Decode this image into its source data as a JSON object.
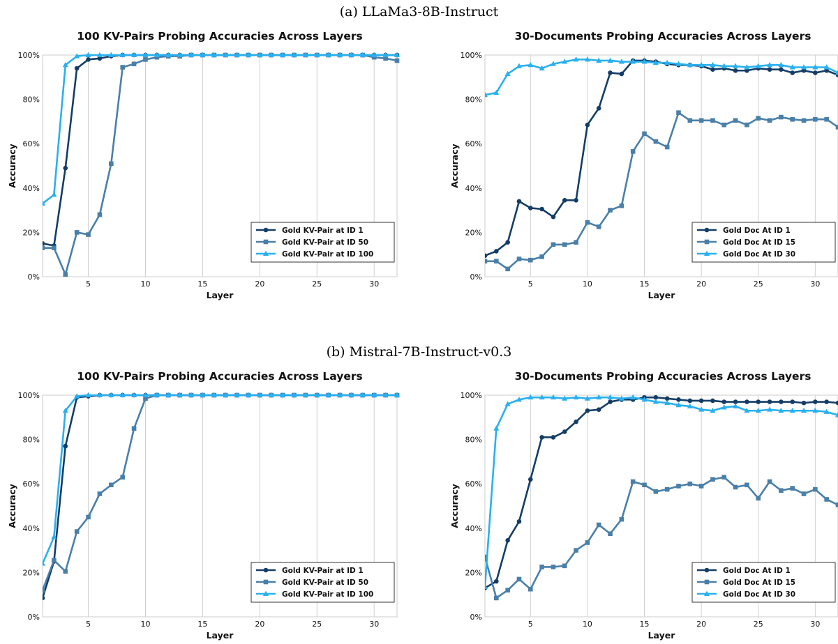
{
  "figure": {
    "group_titles": [
      "(a) LLaMa3-8B-Instruct",
      "(b) Mistral-7B-Instruct-v0.3"
    ]
  },
  "colors": {
    "dark": "#143d66",
    "mid": "#4a7fa8",
    "light": "#2ab0ef"
  },
  "chart_data": [
    {
      "type": "line",
      "title": "100 KV-Pairs Probing Accuracies Across Layers",
      "xlabel": "Layer",
      "ylabel": "Accuracy",
      "xlim": [
        1,
        32
      ],
      "ylim": [
        0,
        100
      ],
      "xticks": [
        5,
        10,
        15,
        20,
        25,
        30
      ],
      "yticks": [
        "0%",
        "20%",
        "40%",
        "60%",
        "80%",
        "100%"
      ],
      "grid": "vertical",
      "legend_position": "lower-right",
      "x": [
        1,
        2,
        3,
        4,
        5,
        6,
        7,
        8,
        9,
        10,
        11,
        12,
        13,
        14,
        15,
        16,
        17,
        18,
        19,
        20,
        21,
        22,
        23,
        24,
        25,
        26,
        27,
        28,
        29,
        30,
        31,
        32
      ],
      "series": [
        {
          "name": "Gold KV-Pair at ID 1",
          "color": "dark",
          "marker": "circle",
          "values": [
            15,
            14,
            49,
            94,
            98,
            98.5,
            99.5,
            100,
            100,
            100,
            100,
            100,
            100,
            100,
            100,
            100,
            100,
            100,
            100,
            100,
            100,
            100,
            100,
            100,
            100,
            100,
            100,
            100,
            100,
            100,
            100,
            100
          ]
        },
        {
          "name": "Gold KV-Pair at ID 50",
          "color": "mid",
          "marker": "square",
          "values": [
            13,
            13,
            1,
            20,
            19,
            28,
            51,
            94.5,
            96,
            98,
            99,
            99.5,
            99.5,
            100,
            100,
            100,
            100,
            100,
            100,
            100,
            100,
            100,
            100,
            100,
            100,
            100,
            100,
            100,
            100,
            99,
            98.5,
            97.5
          ]
        },
        {
          "name": "Gold KV-Pair at ID 100",
          "color": "light",
          "marker": "triangle",
          "values": [
            33,
            37,
            95.5,
            99.5,
            100,
            100,
            100,
            100,
            100,
            100,
            100,
            100,
            100,
            100,
            100,
            100,
            100,
            100,
            100,
            100,
            100,
            100,
            100,
            100,
            100,
            100,
            100,
            100,
            100,
            100,
            100,
            100
          ]
        }
      ]
    },
    {
      "type": "line",
      "title": "30-Documents Probing Accuracies Across Layers",
      "xlabel": "Layer",
      "ylabel": "Accuracy",
      "xlim": [
        1,
        32
      ],
      "ylim": [
        0,
        100
      ],
      "xticks": [
        5,
        10,
        15,
        20,
        25,
        30
      ],
      "yticks": [
        "0%",
        "20%",
        "40%",
        "60%",
        "80%",
        "100%"
      ],
      "grid": "vertical",
      "legend_position": "lower-right",
      "x": [
        1,
        2,
        3,
        4,
        5,
        6,
        7,
        8,
        9,
        10,
        11,
        12,
        13,
        14,
        15,
        16,
        17,
        18,
        19,
        20,
        21,
        22,
        23,
        24,
        25,
        26,
        27,
        28,
        29,
        30,
        31,
        32
      ],
      "series": [
        {
          "name": "Gold Doc At ID 1",
          "color": "dark",
          "marker": "circle",
          "values": [
            9.5,
            11.5,
            15.5,
            34,
            31,
            30.5,
            27,
            34.5,
            34.5,
            68.5,
            76,
            92,
            91.5,
            97.5,
            97.5,
            97,
            96,
            95.5,
            95.5,
            95,
            93.5,
            94,
            93,
            93,
            94,
            93.5,
            93.5,
            92,
            93,
            92,
            93,
            91
          ]
        },
        {
          "name": "Gold Doc At ID 15",
          "color": "mid",
          "marker": "square",
          "values": [
            7,
            7,
            3.5,
            8,
            7.5,
            9,
            14.5,
            14.5,
            15.5,
            24.5,
            22.5,
            30,
            32,
            56.5,
            64.5,
            61,
            58.5,
            74,
            70.5,
            70.5,
            70.5,
            68.5,
            70.5,
            68.5,
            71.5,
            70.5,
            72,
            71,
            70.5,
            71,
            71,
            67.5
          ]
        },
        {
          "name": "Gold Doc At ID 30",
          "color": "light",
          "marker": "triangle",
          "values": [
            82,
            83,
            91.5,
            95,
            95.5,
            94,
            96,
            97,
            98,
            98,
            97.5,
            97.5,
            97,
            97,
            97,
            96.5,
            96.5,
            96,
            95.5,
            95.5,
            95.5,
            95,
            95,
            94.5,
            95,
            95.5,
            95.5,
            94.5,
            94.5,
            94.5,
            94.5,
            92
          ]
        }
      ]
    },
    {
      "type": "line",
      "title": "100 KV-Pairs Probing Accuracies Across Layers",
      "xlabel": "Layer",
      "ylabel": "Accuracy",
      "xlim": [
        1,
        32
      ],
      "ylim": [
        0,
        100
      ],
      "xticks": [
        5,
        10,
        15,
        20,
        25,
        30
      ],
      "yticks": [
        "0%",
        "20%",
        "40%",
        "60%",
        "80%",
        "100%"
      ],
      "grid": "vertical",
      "legend_position": "lower-right",
      "x": [
        1,
        2,
        3,
        4,
        5,
        6,
        7,
        8,
        9,
        10,
        11,
        12,
        13,
        14,
        15,
        16,
        17,
        18,
        19,
        20,
        21,
        22,
        23,
        24,
        25,
        26,
        27,
        28,
        29,
        30,
        31,
        32
      ],
      "series": [
        {
          "name": "Gold KV-Pair at ID 1",
          "color": "dark",
          "marker": "circle",
          "values": [
            8.5,
            25,
            77,
            99,
            99.5,
            100,
            100,
            100,
            100,
            100,
            100,
            100,
            100,
            100,
            100,
            100,
            100,
            100,
            100,
            100,
            100,
            100,
            100,
            100,
            100,
            100,
            100,
            100,
            100,
            100,
            100,
            100
          ]
        },
        {
          "name": "Gold KV-Pair at ID 50",
          "color": "mid",
          "marker": "square",
          "values": [
            12,
            25.5,
            20.5,
            38.5,
            45,
            55.5,
            59.5,
            63,
            85,
            98.5,
            100,
            100,
            100,
            100,
            100,
            100,
            100,
            100,
            100,
            100,
            100,
            100,
            100,
            100,
            100,
            100,
            100,
            100,
            100,
            100,
            100,
            100
          ]
        },
        {
          "name": "Gold KV-Pair at ID 100",
          "color": "light",
          "marker": "triangle",
          "values": [
            24,
            36,
            93,
            99.5,
            100,
            100,
            100,
            100,
            100,
            100,
            100,
            100,
            100,
            100,
            100,
            100,
            100,
            100,
            100,
            100,
            100,
            100,
            100,
            100,
            100,
            100,
            100,
            100,
            100,
            100,
            100,
            100
          ]
        }
      ]
    },
    {
      "type": "line",
      "title": "30-Documents Probing Accuracies Across Layers",
      "xlabel": "Layer",
      "ylabel": "Accuracy",
      "xlim": [
        1,
        32
      ],
      "ylim": [
        0,
        100
      ],
      "xticks": [
        5,
        10,
        15,
        20,
        25,
        30
      ],
      "yticks": [
        "0%",
        "20%",
        "40%",
        "60%",
        "80%",
        "100%"
      ],
      "grid": "vertical",
      "legend_position": "lower-right",
      "x": [
        1,
        2,
        3,
        4,
        5,
        6,
        7,
        8,
        9,
        10,
        11,
        12,
        13,
        14,
        15,
        16,
        17,
        18,
        19,
        20,
        21,
        22,
        23,
        24,
        25,
        26,
        27,
        28,
        29,
        30,
        31,
        32
      ],
      "series": [
        {
          "name": "Gold Doc At ID 1",
          "color": "dark",
          "marker": "circle",
          "values": [
            13,
            16,
            34.5,
            43,
            62,
            81,
            81,
            83.5,
            88,
            93,
            93.5,
            97,
            98,
            98,
            99,
            99,
            98.5,
            98,
            97.5,
            97.5,
            97.5,
            97,
            97,
            97,
            97,
            97,
            97,
            97,
            96.5,
            97,
            97,
            96.5
          ]
        },
        {
          "name": "Gold Doc At ID 15",
          "color": "mid",
          "marker": "square",
          "values": [
            27,
            8.5,
            12,
            17,
            12.5,
            22.5,
            22.5,
            23,
            30,
            33.5,
            41.5,
            37.5,
            44,
            61,
            59.5,
            56.5,
            57.5,
            59,
            60,
            59,
            62,
            63,
            58.5,
            59.5,
            53.5,
            61,
            57,
            58,
            55.5,
            57.5,
            53,
            50.5
          ]
        },
        {
          "name": "Gold Doc At ID 30",
          "color": "light",
          "marker": "triangle",
          "values": [
            13.5,
            85,
            96,
            98,
            99,
            99,
            99,
            98.5,
            99,
            98.5,
            99,
            99,
            98.5,
            99,
            98,
            97,
            96.5,
            95.5,
            95,
            93.5,
            93,
            94.5,
            95,
            93,
            93,
            93.5,
            93,
            93,
            93,
            93,
            92.5,
            91
          ]
        }
      ]
    }
  ]
}
